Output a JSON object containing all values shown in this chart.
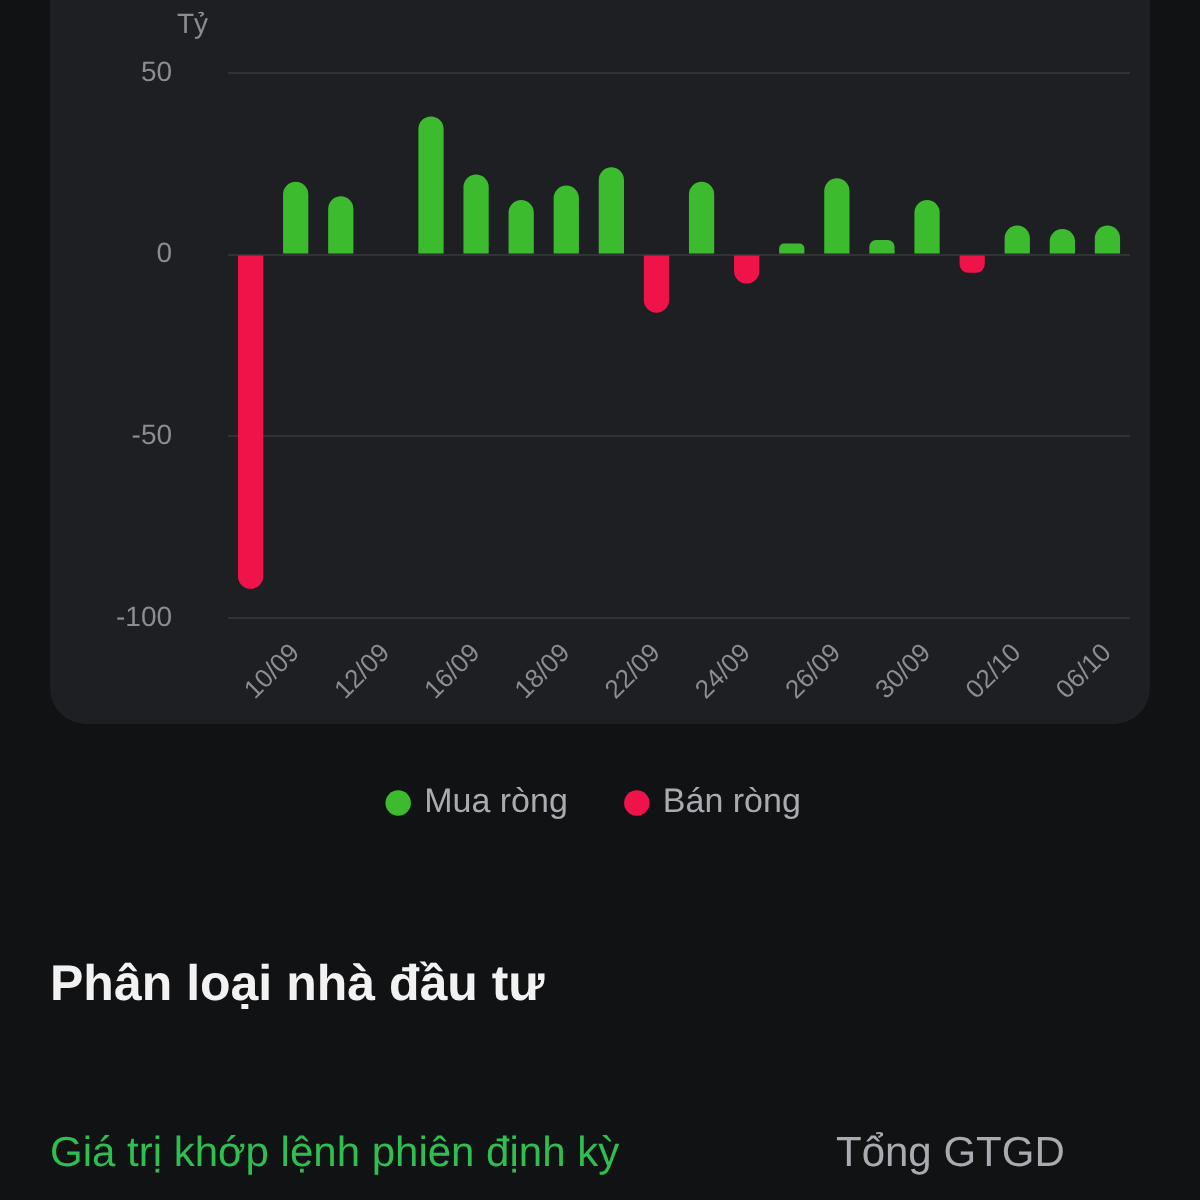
{
  "chart_data": {
    "type": "bar",
    "ylabel": "Tỷ",
    "stacked": true,
    "categories": [
      null,
      "10/09",
      null,
      "12/09",
      null,
      "16/09",
      null,
      "18/09",
      null,
      "22/09",
      null,
      "24/09",
      null,
      "26/09",
      null,
      "30/09",
      null,
      "02/10",
      null,
      "06/10"
    ],
    "series": [
      {
        "name": "Mua ròng",
        "color": "#3dbb2f",
        "values": [
          null,
          20,
          16,
          null,
          38,
          22,
          15,
          19,
          24,
          null,
          20,
          null,
          3,
          21,
          4,
          15,
          null,
          8,
          7,
          8
        ]
      },
      {
        "name": "Bán ròng",
        "color": "#f0134a",
        "values": [
          -92,
          null,
          null,
          null,
          null,
          null,
          null,
          null,
          null,
          -16,
          null,
          -8,
          null,
          null,
          null,
          null,
          -5,
          null,
          null,
          null
        ]
      }
    ],
    "ylim": [
      -100,
      50
    ],
    "yticks": [
      -100,
      -50,
      0,
      50
    ],
    "grid": "y",
    "legend": "bottom",
    "annotations": [
      "Phân loại nhà đầu tư",
      "Giá trị khớp lệnh phiên định kỳ",
      "Tổng GTGD"
    ]
  }
}
